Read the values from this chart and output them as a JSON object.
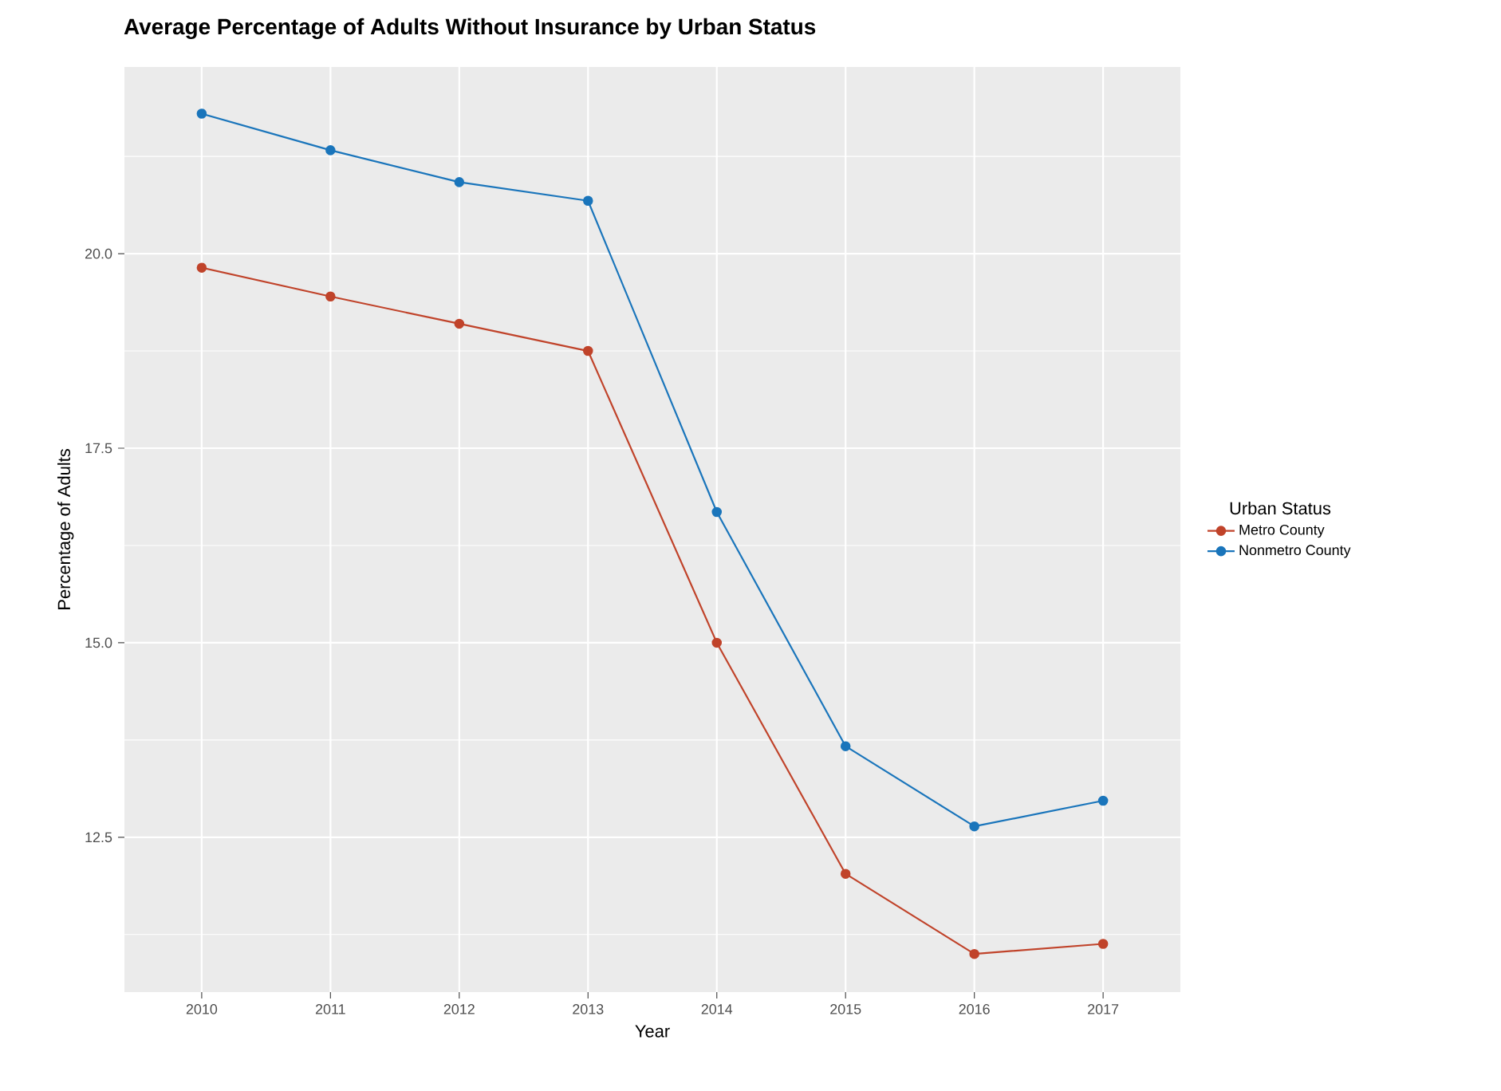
{
  "chart_data": {
    "type": "line",
    "title": "Average Percentage of Adults Without Insurance by Urban Status",
    "xlabel": "Year",
    "ylabel": "Percentage of Adults",
    "legend_title": "Urban Status",
    "categories": [
      "2010",
      "2011",
      "2012",
      "2013",
      "2014",
      "2015",
      "2016",
      "2017"
    ],
    "series": [
      {
        "name": "Metro County",
        "color": "#c0432a",
        "values": [
          19.82,
          19.45,
          19.1,
          18.75,
          15.0,
          12.03,
          11.0,
          11.13
        ]
      },
      {
        "name": "Nonmetro County",
        "color": "#1a75bb",
        "values": [
          21.8,
          21.33,
          20.92,
          20.68,
          16.68,
          13.67,
          12.64,
          12.97
        ]
      }
    ],
    "ylim": [
      10.51,
      22.4
    ],
    "yticks": [
      {
        "value": 12.5,
        "label": "12.5"
      },
      {
        "value": 15,
        "label": "15.0"
      },
      {
        "value": 17.5,
        "label": "17.5"
      },
      {
        "value": 20,
        "label": "20.0"
      }
    ],
    "grid": true,
    "legend": "right",
    "marker": "circle",
    "line_style": "solid"
  }
}
